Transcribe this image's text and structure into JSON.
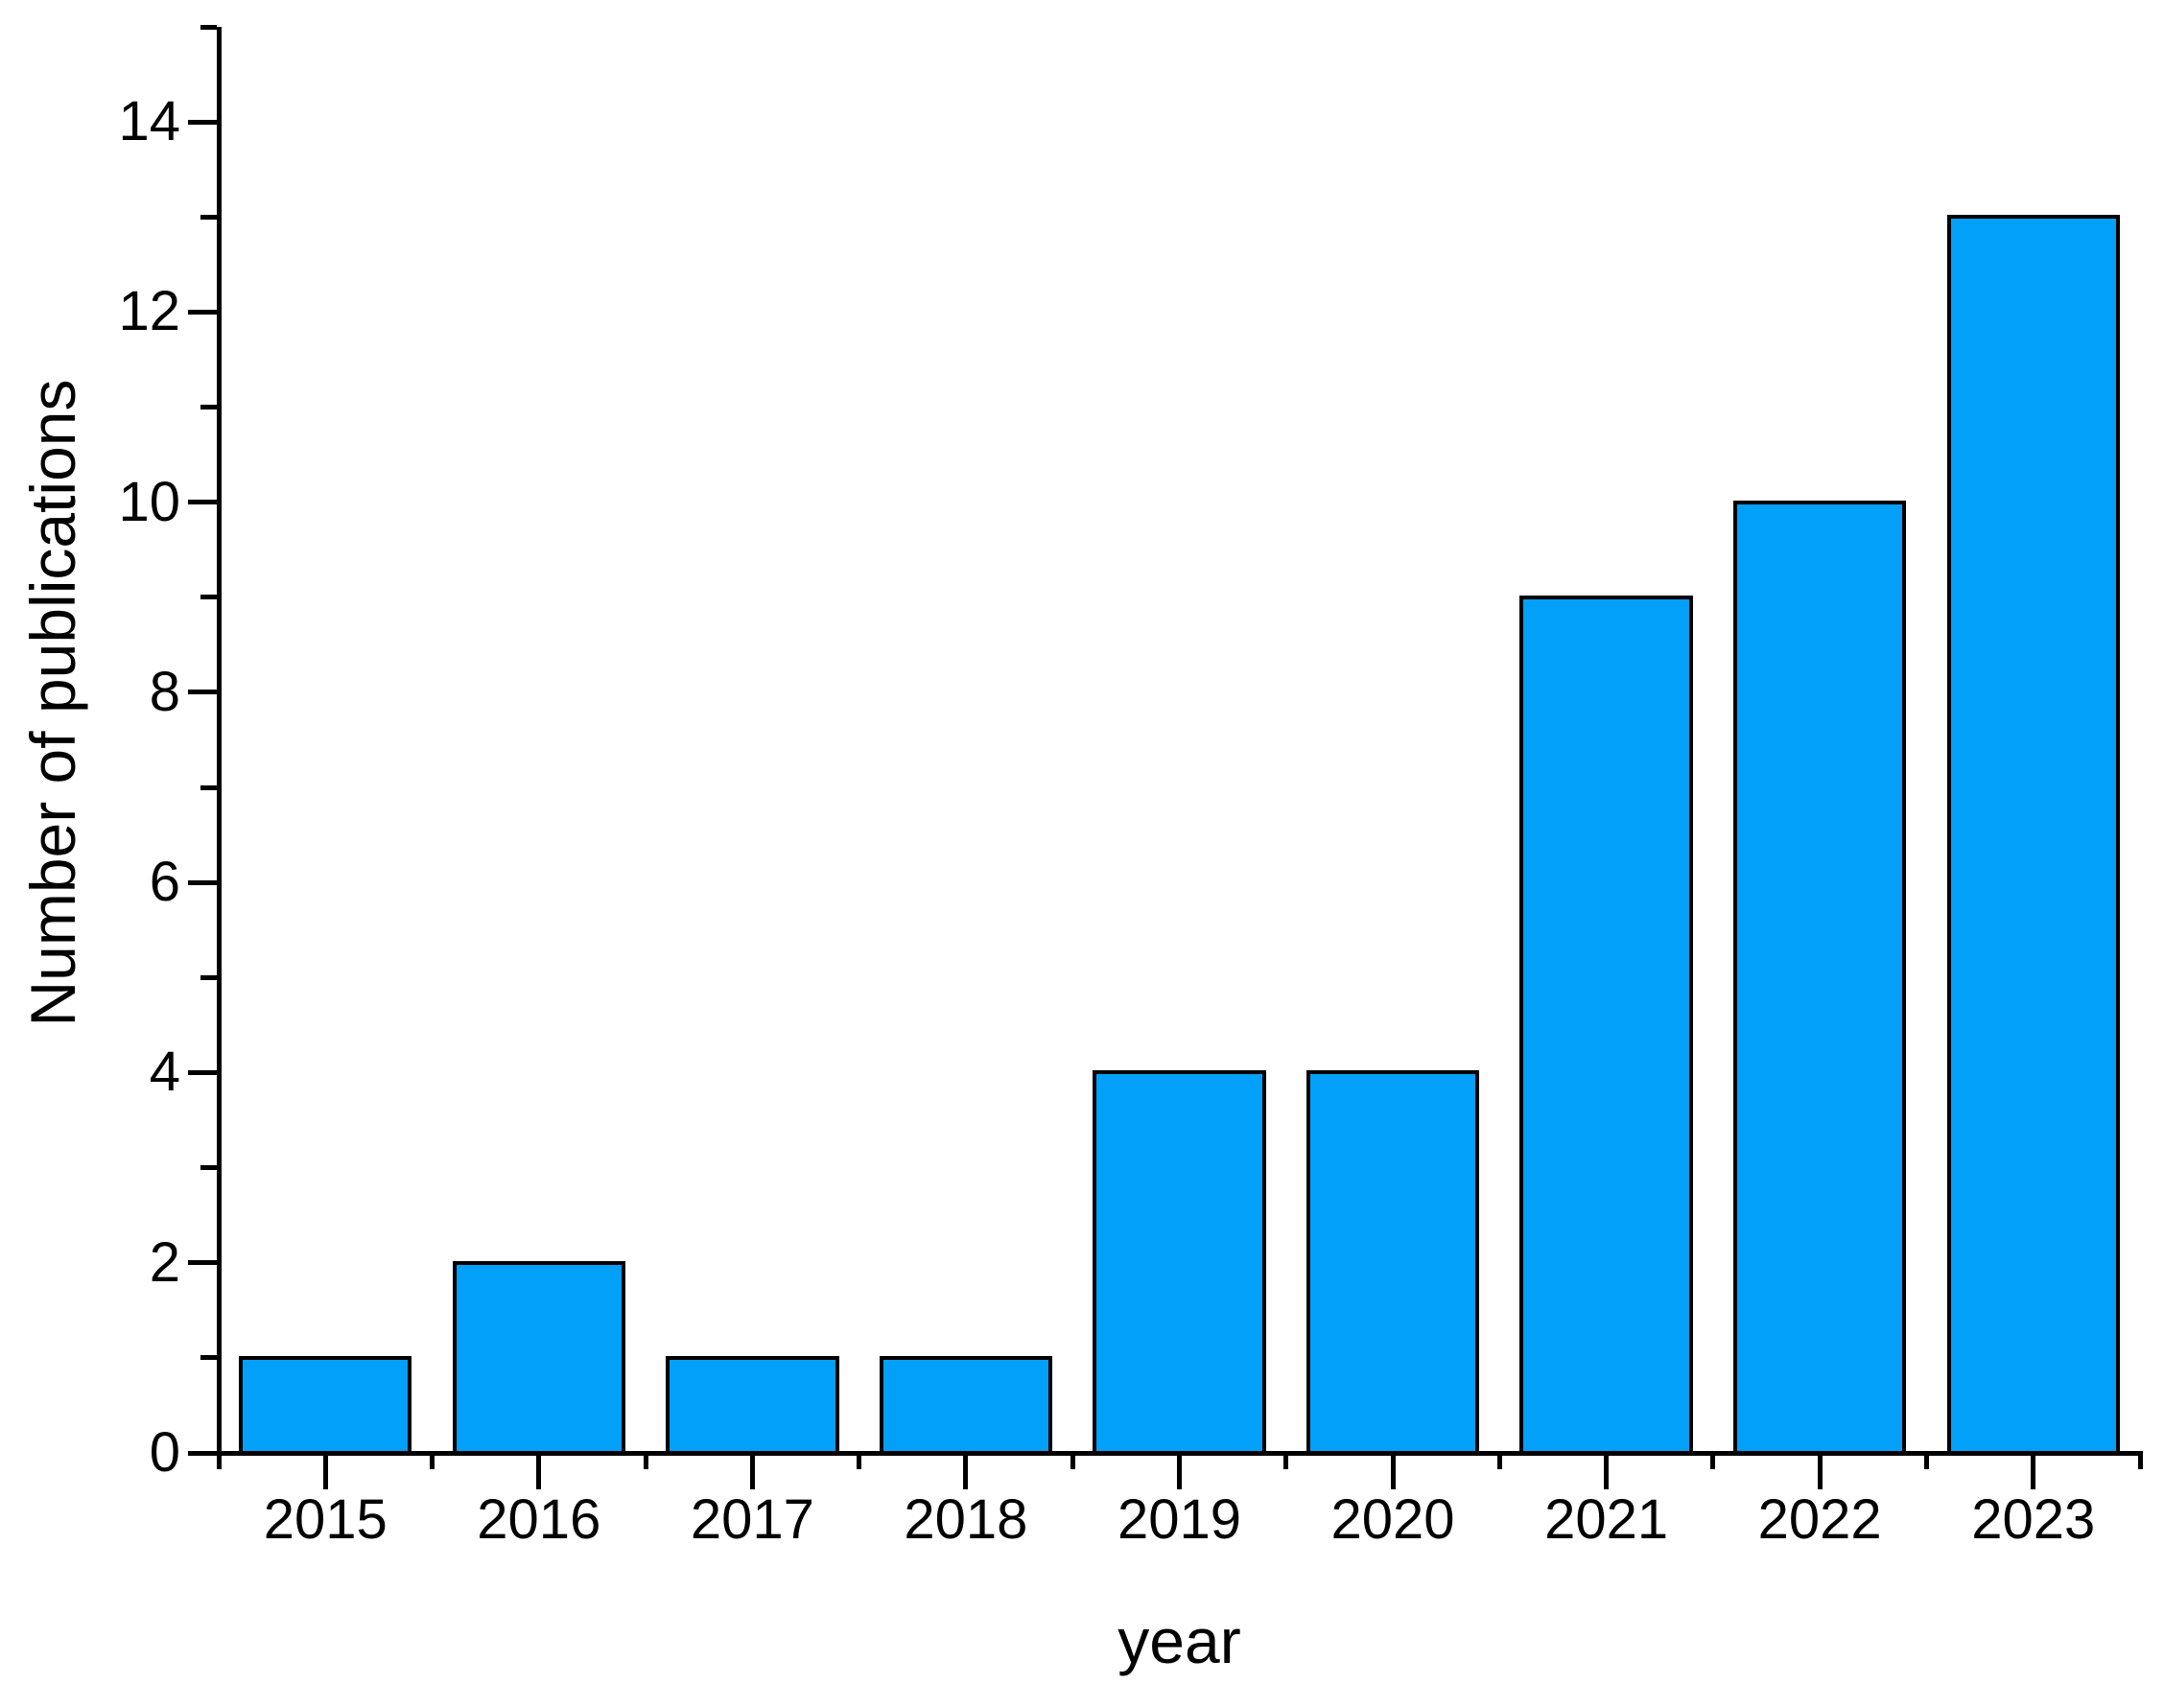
{
  "figure": {
    "background_color": "#ffffff",
    "axis_color": "#000000",
    "bar_fill_color": "#02A0F8",
    "bar_stroke_color": "#000000",
    "text_color": "#000000"
  },
  "chart_data": {
    "type": "bar",
    "title": "",
    "xlabel": "year",
    "ylabel": "Number of publications",
    "categories": [
      "2015",
      "2016",
      "2017",
      "2018",
      "2019",
      "2020",
      "2021",
      "2022",
      "2023"
    ],
    "values": [
      1,
      2,
      1,
      1,
      4,
      4,
      9,
      10,
      13
    ],
    "ylim": [
      0,
      15
    ],
    "y_major_tick_step": 2,
    "y_minor_tick_step": 1,
    "y_tick_labels": [
      "0",
      "2",
      "4",
      "6",
      "8",
      "10",
      "12",
      "14"
    ],
    "grid": false,
    "legend": null,
    "tick_direction": "out",
    "bar_width_fraction": 0.81
  }
}
